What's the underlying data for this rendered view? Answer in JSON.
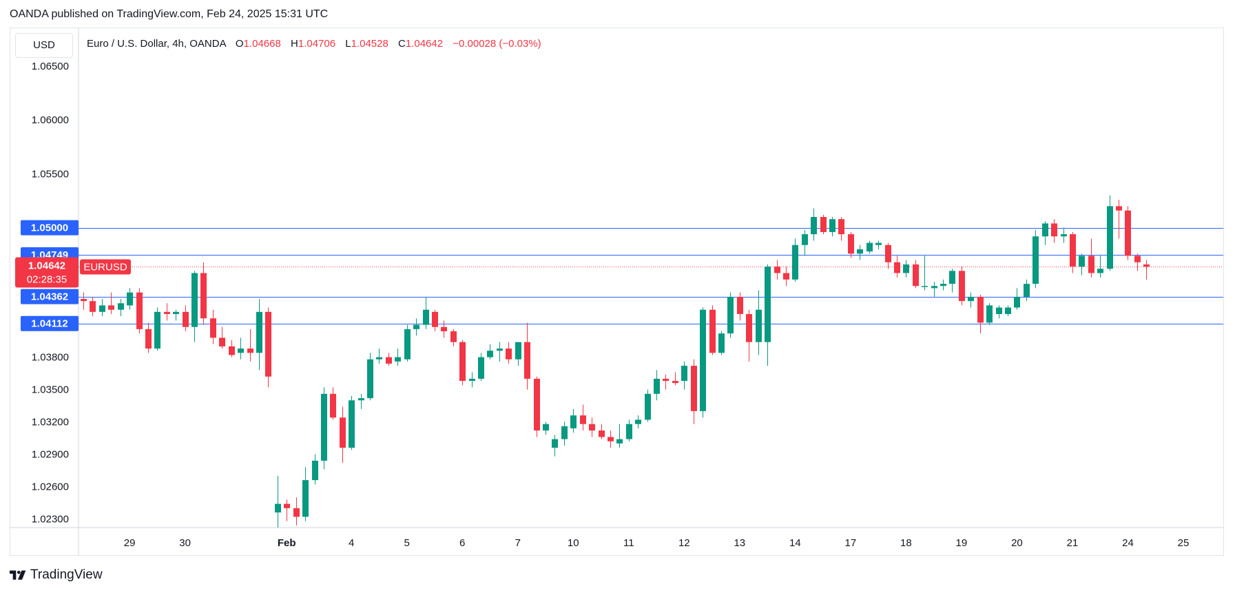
{
  "header": {
    "publisher_line": "OANDA published on TradingView.com, Feb 24, 2025 15:31 UTC"
  },
  "toolbar": {
    "currency": "USD"
  },
  "legend": {
    "symbol": "Euro / U.S. Dollar, 4h, OANDA",
    "o_label": "O",
    "o_value": "1.04668",
    "h_label": "H",
    "h_value": "1.04706",
    "l_label": "L",
    "l_value": "1.04528",
    "c_label": "C",
    "c_value": "1.04642",
    "change": "−0.00028 (−0.03%)"
  },
  "footer": {
    "brand": "TradingView"
  },
  "colors": {
    "up": "#089981",
    "down": "#f23645",
    "level_line": "#2962ff",
    "last_price_line": "#f23645"
  },
  "chart_data": {
    "type": "candlestick",
    "ylim": [
      1.0222,
      1.0685
    ],
    "y_ticks": [
      "1.06500",
      "1.06000",
      "1.05500",
      "1.03800",
      "1.03500",
      "1.03200",
      "1.02900",
      "1.02600",
      "1.02300"
    ],
    "x_ticks": [
      "29",
      "30",
      "Feb",
      "4",
      "5",
      "6",
      "7",
      "10",
      "11",
      "12",
      "13",
      "14",
      "17",
      "18",
      "19",
      "20",
      "21",
      "24",
      "25"
    ],
    "x_tick_index": [
      5,
      11,
      22,
      29,
      35,
      41,
      47,
      53,
      59,
      65,
      71,
      77,
      83,
      89,
      95,
      101,
      107,
      113,
      119
    ],
    "levels": [
      {
        "label": "1.05000",
        "value": 1.05
      },
      {
        "label": "1.04749",
        "value": 1.04749
      },
      {
        "label": "1.04362",
        "value": 1.04362
      },
      {
        "label": "1.04112",
        "value": 1.04112
      }
    ],
    "last_price": {
      "label": "1.04642",
      "symbol": "EURUSD",
      "countdown": "02:28:35",
      "value": 1.04642
    },
    "candles": [
      [
        1.0434,
        1.044,
        1.0424,
        1.0432
      ],
      [
        1.0432,
        1.0436,
        1.0418,
        1.0422
      ],
      [
        1.0422,
        1.0434,
        1.0418,
        1.0428
      ],
      [
        1.0428,
        1.044,
        1.042,
        1.0424
      ],
      [
        1.0424,
        1.0434,
        1.0418,
        1.043
      ],
      [
        1.0428,
        1.0444,
        1.0424,
        1.044
      ],
      [
        1.044,
        1.0444,
        1.0402,
        1.0406
      ],
      [
        1.0406,
        1.0412,
        1.0384,
        1.0388
      ],
      [
        1.0388,
        1.0426,
        1.0386,
        1.0422
      ],
      [
        1.0422,
        1.043,
        1.0414,
        1.042
      ],
      [
        1.042,
        1.0424,
        1.0414,
        1.0422
      ],
      [
        1.0422,
        1.0428,
        1.0404,
        1.0408
      ],
      [
        1.0408,
        1.046,
        1.0394,
        1.0458
      ],
      [
        1.0458,
        1.0468,
        1.041,
        1.0416
      ],
      [
        1.0416,
        1.0424,
        1.0392,
        1.0398
      ],
      [
        1.0398,
        1.0408,
        1.0388,
        1.039
      ],
      [
        1.039,
        1.0396,
        1.038,
        1.0382
      ],
      [
        1.0384,
        1.0398,
        1.0378,
        1.0388
      ],
      [
        1.0388,
        1.0406,
        1.0376,
        1.0384
      ],
      [
        1.0384,
        1.0434,
        1.0368,
        1.0422
      ],
      [
        1.0422,
        1.0426,
        1.0352,
        1.0362
      ],
      [
        1.0236,
        1.027,
        1.0222,
        1.0244
      ],
      [
        1.0244,
        1.0248,
        1.0228,
        1.024
      ],
      [
        1.024,
        1.025,
        1.0224,
        1.0232
      ],
      [
        1.0232,
        1.0278,
        1.0228,
        1.0266
      ],
      [
        1.0266,
        1.029,
        1.0262,
        1.0284
      ],
      [
        1.0284,
        1.0352,
        1.0276,
        1.0346
      ],
      [
        1.0346,
        1.0352,
        1.0322,
        1.0324
      ],
      [
        1.0324,
        1.0334,
        1.0282,
        1.0296
      ],
      [
        1.0296,
        1.0344,
        1.0294,
        1.034
      ],
      [
        1.034,
        1.0346,
        1.0332,
        1.0342
      ],
      [
        1.0342,
        1.0384,
        1.034,
        1.0378
      ],
      [
        1.0378,
        1.0388,
        1.0374,
        1.038
      ],
      [
        1.038,
        1.0384,
        1.0372,
        1.0374
      ],
      [
        1.0376,
        1.0388,
        1.0372,
        1.038
      ],
      [
        1.0378,
        1.041,
        1.0376,
        1.0406
      ],
      [
        1.0406,
        1.0416,
        1.04,
        1.041
      ],
      [
        1.041,
        1.0436,
        1.0406,
        1.0424
      ],
      [
        1.0422,
        1.0424,
        1.0404,
        1.0408
      ],
      [
        1.0408,
        1.0414,
        1.0398,
        1.0404
      ],
      [
        1.0404,
        1.0406,
        1.039,
        1.0394
      ],
      [
        1.0394,
        1.0396,
        1.0354,
        1.0358
      ],
      [
        1.0358,
        1.0366,
        1.0352,
        1.036
      ],
      [
        1.036,
        1.0384,
        1.0358,
        1.038
      ],
      [
        1.038,
        1.0392,
        1.0378,
        1.0386
      ],
      [
        1.0386,
        1.0394,
        1.0376,
        1.0388
      ],
      [
        1.0388,
        1.0394,
        1.0374,
        1.0378
      ],
      [
        1.0378,
        1.0392,
        1.0372,
        1.0394
      ],
      [
        1.0394,
        1.0412,
        1.035,
        1.036
      ],
      [
        1.036,
        1.0362,
        1.0306,
        1.0312
      ],
      [
        1.0312,
        1.032,
        1.0308,
        1.0318
      ],
      [
        1.0296,
        1.0308,
        1.0288,
        1.0304
      ],
      [
        1.0304,
        1.032,
        1.0298,
        1.0316
      ],
      [
        1.0314,
        1.0332,
        1.031,
        1.0326
      ],
      [
        1.0326,
        1.0336,
        1.0312,
        1.0318
      ],
      [
        1.0318,
        1.0324,
        1.0306,
        1.0312
      ],
      [
        1.0312,
        1.0318,
        1.0304,
        1.0306
      ],
      [
        1.0306,
        1.0312,
        1.0296,
        1.0302
      ],
      [
        1.03,
        1.0318,
        1.0296,
        1.0304
      ],
      [
        1.0304,
        1.0322,
        1.0302,
        1.0318
      ],
      [
        1.0318,
        1.0326,
        1.0314,
        1.0322
      ],
      [
        1.0322,
        1.035,
        1.032,
        1.0346
      ],
      [
        1.0346,
        1.0368,
        1.034,
        1.036
      ],
      [
        1.036,
        1.0364,
        1.035,
        1.0358
      ],
      [
        1.0358,
        1.0366,
        1.0354,
        1.0356
      ],
      [
        1.0358,
        1.0376,
        1.035,
        1.0372
      ],
      [
        1.0372,
        1.0378,
        1.0318,
        1.033
      ],
      [
        1.033,
        1.0426,
        1.0324,
        1.0424
      ],
      [
        1.0424,
        1.0428,
        1.0382,
        1.0384
      ],
      [
        1.0384,
        1.0404,
        1.0382,
        1.0402
      ],
      [
        1.0402,
        1.044,
        1.0398,
        1.0436
      ],
      [
        1.0436,
        1.044,
        1.0414,
        1.042
      ],
      [
        1.042,
        1.0424,
        1.0376,
        1.0394
      ],
      [
        1.0394,
        1.0442,
        1.0382,
        1.0424
      ],
      [
        1.0394,
        1.0466,
        1.0372,
        1.0464
      ],
      [
        1.0464,
        1.047,
        1.0452,
        1.0458
      ],
      [
        1.0458,
        1.0464,
        1.0446,
        1.0452
      ],
      [
        1.0452,
        1.049,
        1.045,
        1.0484
      ],
      [
        1.0484,
        1.0498,
        1.0474,
        1.0494
      ],
      [
        1.0494,
        1.0518,
        1.0488,
        1.051
      ],
      [
        1.051,
        1.0512,
        1.0494,
        1.0496
      ],
      [
        1.0496,
        1.051,
        1.0492,
        1.0508
      ],
      [
        1.0508,
        1.051,
        1.0488,
        1.0494
      ],
      [
        1.0494,
        1.0496,
        1.0472,
        1.0476
      ],
      [
        1.0476,
        1.0484,
        1.047,
        1.048
      ],
      [
        1.0478,
        1.0488,
        1.0476,
        1.0486
      ],
      [
        1.0484,
        1.0488,
        1.048,
        1.0486
      ],
      [
        1.0484,
        1.0486,
        1.0462,
        1.0468
      ],
      [
        1.0468,
        1.0474,
        1.0454,
        1.0458
      ],
      [
        1.0458,
        1.047,
        1.0454,
        1.0466
      ],
      [
        1.0466,
        1.047,
        1.0444,
        1.0446
      ],
      [
        1.0446,
        1.0474,
        1.0442,
        1.0446
      ],
      [
        1.0444,
        1.045,
        1.0436,
        1.0446
      ],
      [
        1.0446,
        1.0452,
        1.0442,
        1.0448
      ],
      [
        1.0448,
        1.0462,
        1.044,
        1.046
      ],
      [
        1.046,
        1.0464,
        1.0428,
        1.0432
      ],
      [
        1.0432,
        1.044,
        1.0426,
        1.0436
      ],
      [
        1.0436,
        1.0438,
        1.0402,
        1.0412
      ],
      [
        1.0412,
        1.043,
        1.041,
        1.0428
      ],
      [
        1.042,
        1.0428,
        1.0416,
        1.0426
      ],
      [
        1.042,
        1.0428,
        1.0418,
        1.0426
      ],
      [
        1.0426,
        1.0444,
        1.0424,
        1.0436
      ],
      [
        1.0436,
        1.0452,
        1.0432,
        1.0448
      ],
      [
        1.0448,
        1.0498,
        1.0444,
        1.0492
      ],
      [
        1.0492,
        1.0506,
        1.0484,
        1.0504
      ],
      [
        1.0504,
        1.0508,
        1.0486,
        1.0492
      ],
      [
        1.0492,
        1.05,
        1.0486,
        1.0494
      ],
      [
        1.0494,
        1.0496,
        1.0458,
        1.0464
      ],
      [
        1.0464,
        1.0476,
        1.0456,
        1.0474
      ],
      [
        1.0474,
        1.049,
        1.0454,
        1.0458
      ],
      [
        1.0458,
        1.0474,
        1.0454,
        1.0462
      ],
      [
        1.0462,
        1.053,
        1.046,
        1.052
      ],
      [
        1.052,
        1.0526,
        1.049,
        1.0516
      ],
      [
        1.0516,
        1.052,
        1.047,
        1.0474
      ],
      [
        1.0474,
        1.0476,
        1.046,
        1.0468
      ],
      [
        1.0466,
        1.047,
        1.0452,
        1.0464
      ]
    ]
  }
}
